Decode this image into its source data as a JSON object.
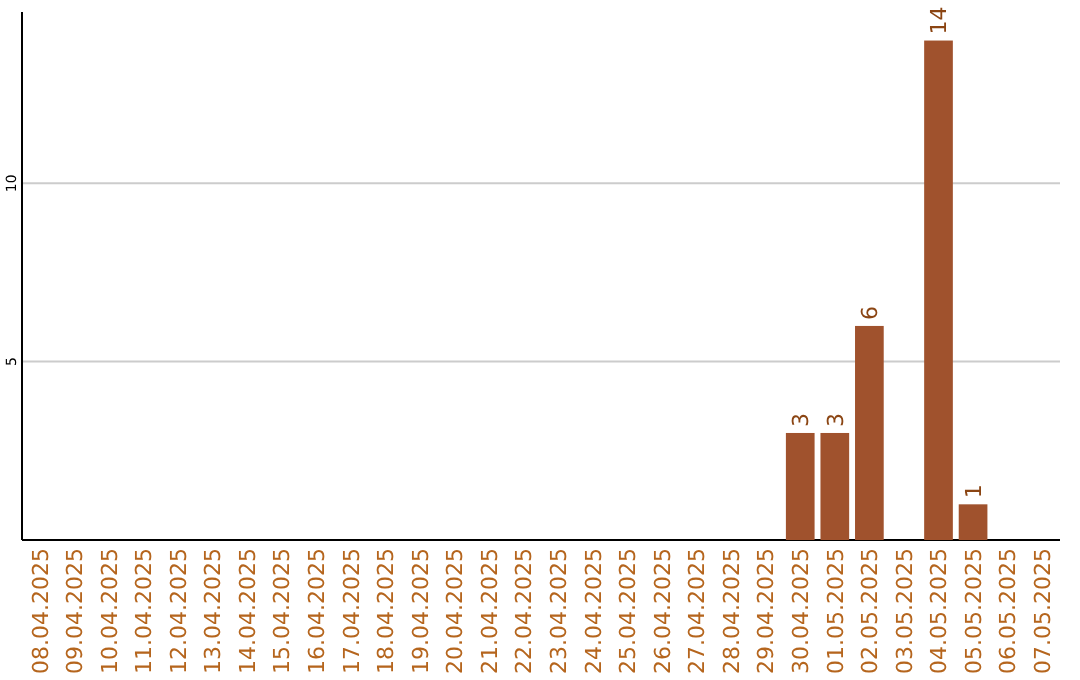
{
  "chart_data": {
    "type": "bar",
    "categories": [
      "08.04.2025",
      "09.04.2025",
      "10.04.2025",
      "11.04.2025",
      "12.04.2025",
      "13.04.2025",
      "14.04.2025",
      "15.04.2025",
      "16.04.2025",
      "17.04.2025",
      "18.04.2025",
      "19.04.2025",
      "20.04.2025",
      "21.04.2025",
      "22.04.2025",
      "23.04.2025",
      "24.04.2025",
      "25.04.2025",
      "26.04.2025",
      "27.04.2025",
      "28.04.2025",
      "29.04.2025",
      "30.04.2025",
      "01.05.2025",
      "02.05.2025",
      "03.05.2025",
      "04.05.2025",
      "05.05.2025",
      "06.05.2025",
      "07.05.2025"
    ],
    "values": [
      0,
      0,
      0,
      0,
      0,
      0,
      0,
      0,
      0,
      0,
      0,
      0,
      0,
      0,
      0,
      0,
      0,
      0,
      0,
      0,
      0,
      0,
      3,
      3,
      6,
      0,
      14,
      1,
      0,
      0
    ],
    "value_labels": [
      null,
      null,
      null,
      null,
      null,
      null,
      null,
      null,
      null,
      null,
      null,
      null,
      null,
      null,
      null,
      null,
      null,
      null,
      null,
      null,
      null,
      null,
      "3",
      "3",
      "6",
      null,
      "14",
      "1",
      null,
      null
    ],
    "color": "#a0522d",
    "ylim": [
      0,
      14.8
    ],
    "yticks": [
      5,
      10
    ],
    "grid": "y"
  }
}
